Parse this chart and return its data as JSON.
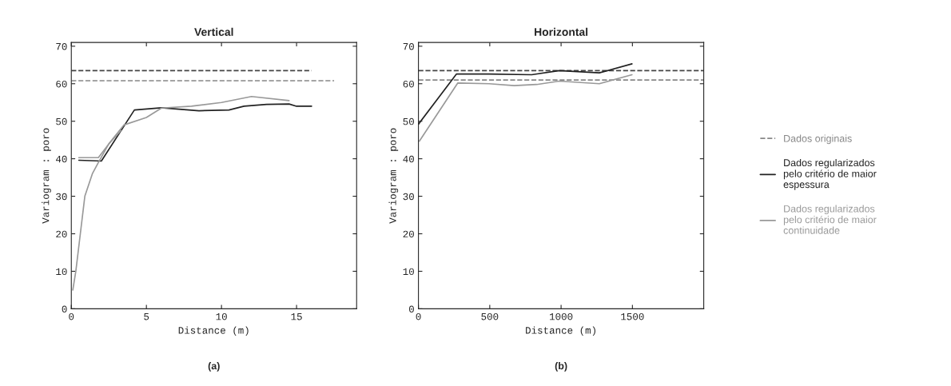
{
  "chart_data": [
    {
      "type": "line",
      "title": "Vertical",
      "xlabel": "Distance (m)",
      "ylabel": "Variogram : poro",
      "xlim": [
        0,
        19
      ],
      "xticks": [
        0,
        5,
        10,
        15
      ],
      "ylim": [
        0,
        71
      ],
      "yticks": [
        0,
        10,
        20,
        30,
        40,
        50,
        60,
        70
      ],
      "grid": false,
      "legend": "right",
      "annotations": [
        "(a)"
      ],
      "series": [
        {
          "name": "Dados originais",
          "color": "#888888",
          "line_style": "dashed",
          "x": [
            0,
            17.5
          ],
          "values": [
            60.8,
            60.8
          ]
        },
        {
          "color": "#444444",
          "line_style": "dashed",
          "x": [
            0,
            16
          ],
          "values": [
            63.5,
            63.5
          ]
        },
        {
          "name": "Dados regularizados\npelo critério de maior\nespessura",
          "color": "#222222",
          "line_style": "solid",
          "x": [
            0.5,
            2.0,
            4.2,
            6.0,
            8.5,
            10.5,
            11.5,
            13,
            14.5,
            15,
            16
          ],
          "values": [
            39.6,
            39.4,
            53.0,
            53.6,
            52.8,
            53.0,
            54.0,
            54.5,
            54.6,
            54.0,
            54.0
          ]
        },
        {
          "name": "Dados regularizados\npelo critério de maior\ncontinuidade",
          "color": "#999999",
          "line_style": "solid",
          "x": [
            0.5,
            1.8,
            2.8,
            3.5,
            5,
            6.0,
            8,
            10,
            12,
            14.5
          ],
          "values": [
            40.3,
            40.3,
            45.5,
            49,
            51,
            53.5,
            54,
            55,
            56.6,
            55.5
          ]
        },
        {
          "color": "#999999",
          "line_style": "solid",
          "x": [
            0.1,
            0.3,
            0.6,
            0.9,
            1.4,
            1.8,
            2.5,
            3.3
          ],
          "values": [
            5,
            10,
            20,
            30,
            36,
            39,
            44,
            47.5
          ]
        }
      ]
    },
    {
      "type": "line",
      "title": "Horizontal",
      "xlabel": "Distance (m)",
      "ylabel": "Variogram : poro",
      "xlim": [
        0,
        2000
      ],
      "xticks": [
        0,
        500,
        1000,
        1500
      ],
      "ylim": [
        0,
        71
      ],
      "yticks": [
        0,
        10,
        20,
        30,
        40,
        50,
        60,
        70
      ],
      "grid": false,
      "annotations": [
        "(b)"
      ],
      "series": [
        {
          "color": "#888888",
          "line_style": "dashed",
          "x": [
            0,
            2000
          ],
          "values": [
            61.0,
            61.0
          ]
        },
        {
          "color": "#444444",
          "line_style": "dashed",
          "x": [
            0,
            2000
          ],
          "values": [
            63.5,
            63.5
          ]
        },
        {
          "color": "#222222",
          "line_style": "solid",
          "x": [
            0,
            267,
            495,
            794,
            987,
            1268,
            1497
          ],
          "values": [
            49.2,
            62.6,
            62.6,
            62.4,
            63.5,
            62.9,
            65.3
          ]
        },
        {
          "color": "#999999",
          "line_style": "solid",
          "x": [
            7,
            276,
            495,
            671,
            829,
            987,
            1268,
            1497
          ],
          "values": [
            44.7,
            60.2,
            60.0,
            59.5,
            59.8,
            60.7,
            60.0,
            62.4
          ]
        }
      ]
    }
  ]
}
